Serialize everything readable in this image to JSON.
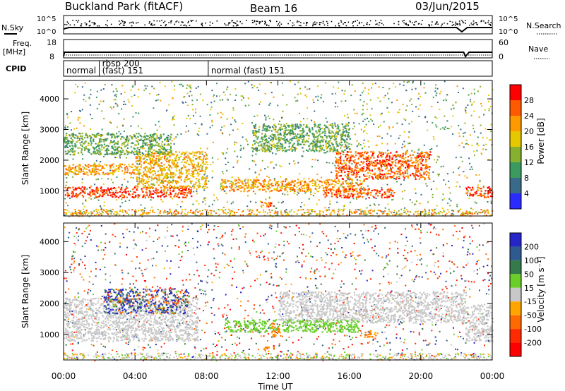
{
  "header": {
    "station": "Buckland Park (fitACF)",
    "beam": "Beam 16",
    "date": "03/Jun/2015"
  },
  "top_panels": {
    "nsky_label": "N.Sky",
    "nsky_ticks": [
      "10^5",
      "10^0"
    ],
    "nsearch_label": "N.Search",
    "nsearch_ticks": [
      "10^5",
      "10^0"
    ],
    "freq_label": "Freq.",
    "freq_unit": "[MHz]",
    "freq_ticks": [
      "18",
      "8"
    ],
    "nave_label": "Nave",
    "nave_ticks": [
      "60",
      "0"
    ],
    "cpid_label": "CPID",
    "cpid_segments": [
      {
        "start_h": 0,
        "label": "normal"
      },
      {
        "start_h": 2,
        "label": "rbsp 200"
      },
      {
        "start_h": 2,
        "label": "(fast) 151"
      },
      {
        "start_h": 8.1,
        "label": "normal (fast) 151"
      }
    ]
  },
  "colorbars": {
    "power": {
      "title": "Power [dB]",
      "ticks": [
        "28",
        "24",
        "20",
        "16",
        "12",
        "8",
        "4"
      ],
      "colors": [
        "#ff0000",
        "#ff5a00",
        "#ff9900",
        "#e6c800",
        "#86b030",
        "#3a9a60",
        "#3a6a8a",
        "#2b2bff"
      ]
    },
    "velocity": {
      "title": "Velocity [m s⁻¹]",
      "ticks": [
        "200",
        "100",
        "50",
        "15",
        "-15",
        "-50",
        "-100",
        "-200"
      ],
      "colors": [
        "#2525c8",
        "#2f5a8f",
        "#357a4a",
        "#6acd2a",
        "#c8c8c8",
        "#ffa500",
        "#ff6a00",
        "#ff2a00",
        "#ff0000"
      ]
    }
  },
  "chart_data": {
    "type": "heatmap",
    "xlabel": "Time UT",
    "x_ticks": [
      "00:00",
      "04:00",
      "08:00",
      "12:00",
      "16:00",
      "20:00",
      "00:00"
    ],
    "xlim_hours": [
      0,
      24
    ],
    "ylabel": "Slant Range [km]",
    "y_ticks": [
      1000,
      2000,
      3000,
      4000
    ],
    "ylim_km": [
      180,
      4600
    ],
    "panels": [
      {
        "name": "Power",
        "bands": [
          {
            "t_start": 0.0,
            "t_end": 7.2,
            "r_start": 800,
            "r_end": 1150,
            "level": 28
          },
          {
            "t_start": 0.0,
            "t_end": 4.0,
            "r_start": 1550,
            "r_end": 1900,
            "level": 22
          },
          {
            "t_start": 4.0,
            "t_end": 8.0,
            "r_start": 1100,
            "r_end": 2300,
            "level": 20
          },
          {
            "t_start": 8.8,
            "t_end": 16.8,
            "r_start": 1000,
            "r_end": 1400,
            "level": 22
          },
          {
            "t_start": 14.5,
            "t_end": 18.5,
            "r_start": 800,
            "r_end": 1100,
            "level": 26
          },
          {
            "t_start": 15.2,
            "t_end": 20.5,
            "r_start": 1400,
            "r_end": 2300,
            "level": 26
          },
          {
            "t_start": 11.0,
            "t_end": 11.8,
            "r_start": 480,
            "r_end": 650,
            "level": 26
          },
          {
            "t_start": 22.5,
            "t_end": 24.0,
            "r_start": 800,
            "r_end": 1150,
            "level": 28
          },
          {
            "t_start": 0.0,
            "t_end": 6.0,
            "r_start": 2200,
            "r_end": 2900,
            "level": 12
          },
          {
            "t_start": 10.5,
            "t_end": 16.0,
            "r_start": 2300,
            "r_end": 3200,
            "level": 12
          }
        ]
      },
      {
        "name": "Velocity",
        "bands": [
          {
            "t_start": 0.0,
            "t_end": 7.5,
            "r_start": 800,
            "r_end": 2200,
            "level": 0
          },
          {
            "t_start": 12.0,
            "t_end": 22.5,
            "r_start": 1400,
            "r_end": 2400,
            "level": 0
          },
          {
            "t_start": 9.0,
            "t_end": 16.5,
            "r_start": 1100,
            "r_end": 1500,
            "level": 30
          },
          {
            "t_start": 11.6,
            "t_end": 12.1,
            "r_start": 950,
            "r_end": 1400,
            "level": -50
          },
          {
            "t_start": 16.8,
            "t_end": 17.6,
            "r_start": 900,
            "r_end": 1150,
            "level": -50
          },
          {
            "t_start": 11.2,
            "t_end": 11.8,
            "r_start": 480,
            "r_end": 650,
            "level": -50
          },
          {
            "t_start": 22.5,
            "t_end": 24.0,
            "r_start": 800,
            "r_end": 2000,
            "level": 0
          },
          {
            "t_start": 2.2,
            "t_end": 7.0,
            "r_start": 1700,
            "r_end": 2500,
            "level": 120
          }
        ]
      }
    ]
  }
}
